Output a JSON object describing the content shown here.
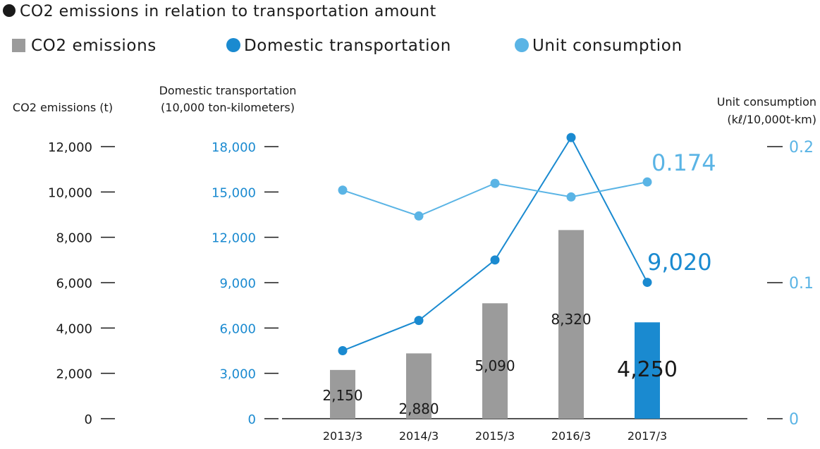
{
  "title": "CO2 emissions in relation to transportation amount",
  "legend": {
    "co2": "CO2 emissions",
    "domestic": "Domestic transportation",
    "unit": "Unit consumption"
  },
  "axes": {
    "left_title": "CO2 emissions (t)",
    "mid_title_line1": "Domestic transportation",
    "mid_title_line2": "(10,000 ton-kilometers)",
    "right_title_line1": "Unit consumption",
    "right_title_line2": "(kℓ/10,000t-km)",
    "left_ticks": [
      "0",
      "2,000",
      "4,000",
      "6,000",
      "8,000",
      "10,000",
      "12,000"
    ],
    "mid_ticks": [
      "0",
      "3,000",
      "6,000",
      "9,000",
      "12,000",
      "15,000",
      "18,000"
    ],
    "right_ticks": [
      "0",
      "0.1",
      "0.2"
    ]
  },
  "colors": {
    "bar": "#9b9b9b",
    "bar_highlight": "#1a8ad0",
    "domestic": "#1a8ad0",
    "unit": "#5ab4e5",
    "text": "#1a1a1a"
  },
  "chart_data": {
    "type": "bar",
    "categories": [
      "2013/3",
      "2014/3",
      "2015/3",
      "2016/3",
      "2017/3"
    ],
    "series": [
      {
        "name": "CO2 emissions",
        "type": "bar",
        "axis": "left",
        "unit": "t",
        "values": [
          2150,
          2880,
          5090,
          8320,
          4250
        ],
        "labels": [
          "2,150",
          "2,880",
          "5,090",
          "8,320",
          "4,250"
        ]
      },
      {
        "name": "Domestic transportation",
        "type": "line",
        "axis": "middle",
        "unit": "10,000 ton-kilometers",
        "values": [
          4500,
          6500,
          10500,
          18600,
          9020
        ],
        "labels": [
          "",
          "",
          "",
          "",
          "9,020"
        ]
      },
      {
        "name": "Unit consumption",
        "type": "line",
        "axis": "right",
        "unit": "kℓ/10,000t-km",
        "values": [
          0.168,
          0.149,
          0.173,
          0.163,
          0.174
        ],
        "labels": [
          "",
          "",
          "",
          "",
          "0.174"
        ]
      }
    ],
    "y_left": {
      "min": 0,
      "max": 12000,
      "ticks": [
        0,
        2000,
        4000,
        6000,
        8000,
        10000,
        12000
      ]
    },
    "y_middle": {
      "min": 0,
      "max": 18000,
      "ticks": [
        0,
        3000,
        6000,
        9000,
        12000,
        15000,
        18000
      ]
    },
    "y_right": {
      "min": 0,
      "max": 0.2,
      "ticks": [
        0,
        0.1,
        0.2
      ]
    },
    "legend_position": "top-left",
    "grid": false
  }
}
